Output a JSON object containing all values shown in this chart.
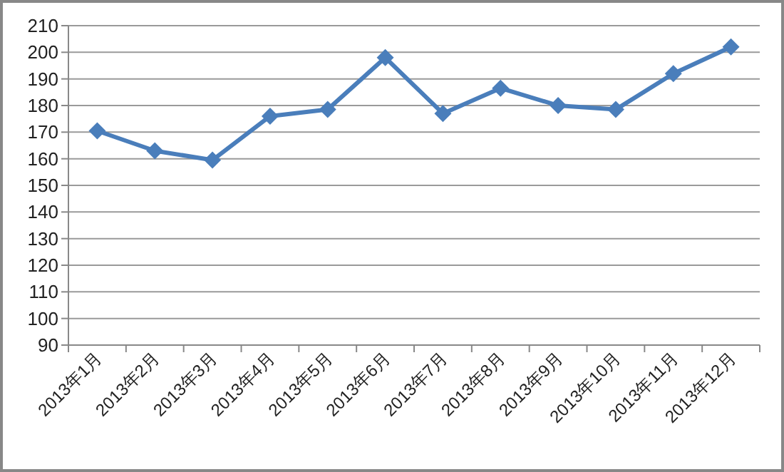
{
  "chart_data": {
    "type": "line",
    "categories": [
      "2013年1月",
      "2013年2月",
      "2013年3月",
      "2013年4月",
      "2013年5月",
      "2013年6月",
      "2013年7月",
      "2013年8月",
      "2013年9月",
      "2013年10月",
      "2013年11月",
      "2013年12月"
    ],
    "series": [
      {
        "color": "#4a7ebb",
        "values": [
          170.5,
          163,
          159.5,
          176,
          178.5,
          198,
          177,
          186.5,
          180,
          178.5,
          192,
          202
        ]
      }
    ],
    "ylim": [
      90,
      210
    ],
    "yticks": [
      90,
      100,
      110,
      120,
      130,
      140,
      150,
      160,
      170,
      180,
      190,
      200,
      210
    ],
    "grid": "y",
    "marker": "diamond",
    "line_style": "solid"
  }
}
